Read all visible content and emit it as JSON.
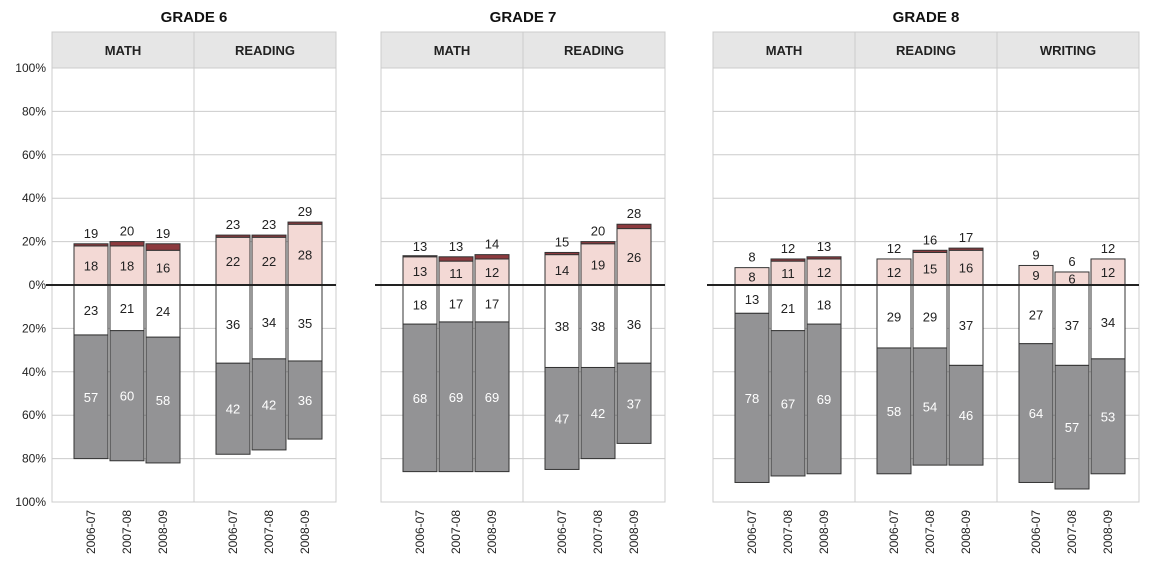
{
  "chart_data": {
    "type": "bar",
    "subtype": "diverging-stacked",
    "y_tick_labels": [
      "100%",
      "80%",
      "60%",
      "40%",
      "20%",
      "0%",
      "20%",
      "40%",
      "60%",
      "80%",
      "100%"
    ],
    "ylim": [
      -100,
      100
    ],
    "grid": true,
    "colors": {
      "advanced": "#8c3a3e",
      "proficient": "#f3d9d5",
      "basic": "#ffffff",
      "below_basic": "#939395",
      "header_bg": "#e6e6e6",
      "grid": "#cccccc",
      "zero_line": "#222222"
    },
    "panels": [
      {
        "title": "GRADE 6",
        "subjects": [
          {
            "name": "MATH",
            "years": [
              {
                "year": "2006-07",
                "advanced": 1,
                "proficient": 18,
                "total_above": 19,
                "basic": 23,
                "below_basic": 57,
                "advanced_label": "",
                "proficient_label": "18",
                "total_label": "19"
              },
              {
                "year": "2007-08",
                "advanced": 2,
                "proficient": 18,
                "total_above": 20,
                "basic": 21,
                "below_basic": 60,
                "advanced_label": "",
                "proficient_label": "18",
                "total_label": "20"
              },
              {
                "year": "2008-09",
                "advanced": 3,
                "proficient": 16,
                "total_above": 19,
                "basic": 24,
                "below_basic": 58,
                "advanced_label": "",
                "proficient_label": "16",
                "total_label": "19"
              }
            ]
          },
          {
            "name": "READING",
            "years": [
              {
                "year": "2006-07",
                "advanced": 1,
                "proficient": 22,
                "total_above": 23,
                "basic": 36,
                "below_basic": 42,
                "advanced_label": "",
                "proficient_label": "22",
                "total_label": "23"
              },
              {
                "year": "2007-08",
                "advanced": 1,
                "proficient": 22,
                "total_above": 23,
                "basic": 34,
                "below_basic": 42,
                "advanced_label": "",
                "proficient_label": "22",
                "total_label": "23"
              },
              {
                "year": "2008-09",
                "advanced": 1,
                "proficient": 28,
                "total_above": 29,
                "basic": 35,
                "below_basic": 36,
                "advanced_label": "",
                "proficient_label": "28",
                "total_label": "29"
              }
            ]
          }
        ]
      },
      {
        "title": "GRADE 7",
        "subjects": [
          {
            "name": "MATH",
            "years": [
              {
                "year": "2006-07",
                "advanced": 0.5,
                "proficient": 13,
                "total_above": 13,
                "basic": 18,
                "below_basic": 68,
                "advanced_label": "",
                "proficient_label": "13",
                "total_label": "13"
              },
              {
                "year": "2007-08",
                "advanced": 2,
                "proficient": 11,
                "total_above": 13,
                "basic": 17,
                "below_basic": 69,
                "advanced_label": "",
                "proficient_label": "11",
                "total_label": "13"
              },
              {
                "year": "2008-09",
                "advanced": 2,
                "proficient": 12,
                "total_above": 14,
                "basic": 17,
                "below_basic": 69,
                "advanced_label": "",
                "proficient_label": "12",
                "total_label": "14"
              }
            ]
          },
          {
            "name": "READING",
            "years": [
              {
                "year": "2006-07",
                "advanced": 1,
                "proficient": 14,
                "total_above": 15,
                "basic": 38,
                "below_basic": 47,
                "advanced_label": "",
                "proficient_label": "14",
                "total_label": "15"
              },
              {
                "year": "2007-08",
                "advanced": 1,
                "proficient": 19,
                "total_above": 20,
                "basic": 38,
                "below_basic": 42,
                "advanced_label": "",
                "proficient_label": "19",
                "total_label": "20"
              },
              {
                "year": "2008-09",
                "advanced": 2,
                "proficient": 26,
                "total_above": 28,
                "basic": 36,
                "below_basic": 37,
                "advanced_label": "",
                "proficient_label": "26",
                "total_label": "28"
              }
            ]
          }
        ]
      },
      {
        "title": "GRADE 8",
        "subjects": [
          {
            "name": "MATH",
            "years": [
              {
                "year": "2006-07",
                "advanced": 0,
                "proficient": 8,
                "total_above": 8,
                "basic": 13,
                "below_basic": 78,
                "advanced_label": "",
                "proficient_label": "8",
                "total_label": "8"
              },
              {
                "year": "2007-08",
                "advanced": 1,
                "proficient": 11,
                "total_above": 12,
                "basic": 21,
                "below_basic": 67,
                "advanced_label": "",
                "proficient_label": "11",
                "total_label": "12"
              },
              {
                "year": "2008-09",
                "advanced": 1,
                "proficient": 12,
                "total_above": 13,
                "basic": 18,
                "below_basic": 69,
                "advanced_label": "",
                "proficient_label": "12",
                "total_label": "13"
              }
            ]
          },
          {
            "name": "READING",
            "years": [
              {
                "year": "2006-07",
                "advanced": 0,
                "proficient": 12,
                "total_above": 12,
                "basic": 29,
                "below_basic": 58,
                "advanced_label": "",
                "proficient_label": "12",
                "total_label": "12"
              },
              {
                "year": "2007-08",
                "advanced": 1,
                "proficient": 15,
                "total_above": 16,
                "basic": 29,
                "below_basic": 54,
                "advanced_label": "",
                "proficient_label": "15",
                "total_label": "16"
              },
              {
                "year": "2008-09",
                "advanced": 1,
                "proficient": 16,
                "total_above": 17,
                "basic": 37,
                "below_basic": 46,
                "advanced_label": "",
                "proficient_label": "16",
                "total_label": "17"
              }
            ]
          },
          {
            "name": "WRITING",
            "years": [
              {
                "year": "2006-07",
                "advanced": 0,
                "proficient": 9,
                "total_above": 9,
                "basic": 27,
                "below_basic": 64,
                "advanced_label": "",
                "proficient_label": "9",
                "total_label": "9"
              },
              {
                "year": "2007-08",
                "advanced": 0,
                "proficient": 6,
                "total_above": 6,
                "basic": 37,
                "below_basic": 57,
                "advanced_label": "",
                "proficient_label": "6",
                "total_label": "6"
              },
              {
                "year": "2008-09",
                "advanced": 0,
                "proficient": 12,
                "total_above": 12,
                "basic": 34,
                "below_basic": 53,
                "advanced_label": "",
                "proficient_label": "12",
                "total_label": "12"
              }
            ]
          }
        ]
      }
    ]
  }
}
